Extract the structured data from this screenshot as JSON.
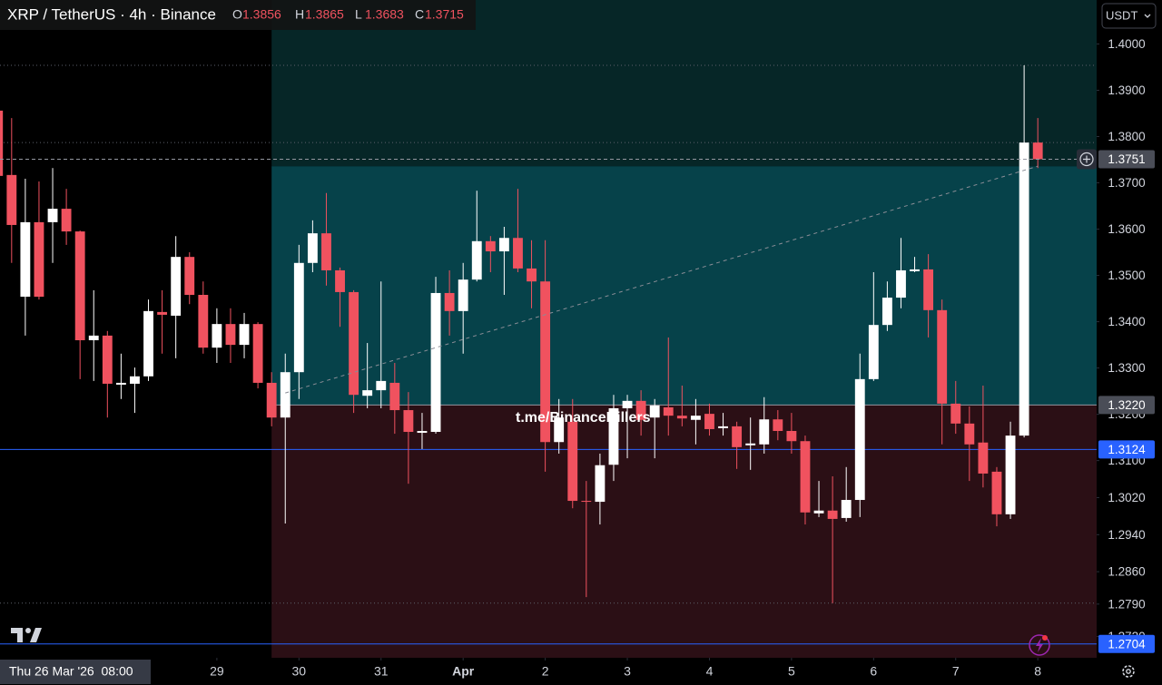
{
  "header": {
    "title": "XRP / TetherUS · 4h · Binance",
    "ohlc_labels": [
      "O",
      "H",
      "L",
      "C"
    ]
  },
  "currency": "USDT",
  "watermark": "t.me/BinanceKillers",
  "chart_data": {
    "type": "candlestick",
    "open": [
      1.3856,
      1.3717,
      1.3454,
      1.3615,
      1.3615,
      1.3644,
      1.3595,
      1.336,
      1.337,
      1.3264,
      1.3266,
      1.3282,
      1.3421,
      1.3413,
      1.354,
      1.3458,
      1.3344,
      1.3395,
      1.335,
      1.3395,
      1.3268,
      1.3193,
      1.3291,
      1.3527,
      1.3591,
      1.3511,
      1.3464,
      1.324,
      1.3252,
      1.3268,
      1.3209,
      1.316,
      1.3162,
      1.3462,
      1.3423,
      1.3491,
      1.3574,
      1.3552,
      1.3581,
      1.3515,
      1.3487,
      1.314,
      1.3184,
      1.3013,
      1.3011,
      1.3091,
      1.3213,
      1.3229,
      1.3193,
      1.3215,
      1.3197,
      1.3188,
      1.3201,
      1.317,
      1.3174,
      1.3133,
      1.3135,
      1.3189,
      1.3164,
      1.3142,
      1.2986,
      1.2992,
      1.2976,
      1.3015,
      1.3276,
      1.3393,
      1.3452,
      1.3509,
      1.3513,
      1.3425,
      1.3223,
      1.318,
      1.3139,
      1.3076,
      1.2984,
      1.3154,
      1.3787
    ],
    "high": [
      1.3865,
      1.384,
      1.3709,
      1.3703,
      1.3732,
      1.3687,
      1.3597,
      1.3468,
      1.338,
      1.3331,
      1.3301,
      1.3448,
      1.3468,
      1.3585,
      1.355,
      1.3487,
      1.3429,
      1.3429,
      1.3419,
      1.3399,
      1.3291,
      1.3331,
      1.3566,
      1.3619,
      1.3678,
      1.3517,
      1.3468,
      1.3354,
      1.3487,
      1.3311,
      1.3248,
      1.3203,
      1.3497,
      1.3511,
      1.3527,
      1.3683,
      1.3585,
      1.3605,
      1.3687,
      1.3576,
      1.3576,
      1.3233,
      1.3233,
      1.3056,
      1.3115,
      1.3242,
      1.3242,
      1.3252,
      1.3233,
      1.3366,
      1.3262,
      1.3233,
      1.3223,
      1.3203,
      1.3184,
      1.3193,
      1.3237,
      1.3209,
      1.3203,
      1.3154,
      1.3056,
      1.3066,
      1.3086,
      1.3331,
      1.3507,
      1.3487,
      1.3581,
      1.354,
      1.3546,
      1.3448,
      1.3272,
      1.3217,
      1.3262,
      1.3086,
      1.3184,
      1.3954,
      1.384
    ],
    "low": [
      1.3683,
      1.3527,
      1.337,
      1.3448,
      1.3527,
      1.3566,
      1.3276,
      1.3272,
      1.3193,
      1.3233,
      1.3203,
      1.3272,
      1.3331,
      1.3321,
      1.3438,
      1.3331,
      1.3311,
      1.3311,
      1.3321,
      1.3256,
      1.3174,
      1.2964,
      1.3233,
      1.3507,
      1.3478,
      1.3389,
      1.3203,
      1.3213,
      1.3213,
      1.3158,
      1.305,
      1.3125,
      1.3158,
      1.337,
      1.3331,
      1.3487,
      1.3507,
      1.3458,
      1.3507,
      1.3429,
      1.3076,
      1.3115,
      1.2997,
      1.2805,
      1.2962,
      1.3056,
      1.3105,
      1.3154,
      1.3105,
      1.3154,
      1.3174,
      1.3135,
      1.3154,
      1.3154,
      1.3082,
      1.308,
      1.3115,
      1.3144,
      1.3115,
      1.2962,
      1.2978,
      1.2792,
      1.2968,
      1.2978,
      1.3272,
      1.338,
      1.3429,
      1.3507,
      1.3366,
      1.3135,
      1.3158,
      1.3056,
      1.3042,
      1.2958,
      1.2974,
      1.315,
      1.3732
    ],
    "close": [
      1.3715,
      1.3609,
      1.3615,
      1.3454,
      1.3644,
      1.3595,
      1.336,
      1.337,
      1.3266,
      1.3268,
      1.3282,
      1.3423,
      1.3415,
      1.354,
      1.3458,
      1.3344,
      1.3395,
      1.335,
      1.3395,
      1.3268,
      1.3193,
      1.3291,
      1.3527,
      1.3591,
      1.3511,
      1.3464,
      1.3242,
      1.3252,
      1.3272,
      1.3209,
      1.3162,
      1.3164,
      1.3462,
      1.3423,
      1.3491,
      1.3574,
      1.3552,
      1.3581,
      1.3515,
      1.3487,
      1.314,
      1.3193,
      1.3013,
      1.3011,
      1.309,
      1.3213,
      1.3229,
      1.3188,
      1.3219,
      1.3197,
      1.3191,
      1.3197,
      1.3168,
      1.3174,
      1.3129,
      1.3137,
      1.3189,
      1.3164,
      1.3142,
      1.2988,
      1.2992,
      1.2974,
      1.3015,
      1.3276,
      1.3393,
      1.3452,
      1.3511,
      1.3513,
      1.3425,
      1.3223,
      1.318,
      1.3135,
      1.3072,
      1.2984,
      1.3154,
      1.3787,
      1.3751
    ],
    "up_color": "#ffffff",
    "down_color": "#f0525f",
    "xlim": [
      0.15,
      80.3
    ],
    "xticks": [
      {
        "value": 16,
        "label": "29"
      },
      {
        "value": 22,
        "label": "30"
      },
      {
        "value": 28,
        "label": "31"
      },
      {
        "value": 34,
        "label": "Apr"
      },
      {
        "value": 40,
        "label": "2"
      },
      {
        "value": 46,
        "label": "3"
      },
      {
        "value": 52,
        "label": "4"
      },
      {
        "value": 58,
        "label": "5"
      },
      {
        "value": 64,
        "label": "6"
      },
      {
        "value": 70,
        "label": "7"
      },
      {
        "value": 76,
        "label": "8"
      }
    ],
    "ylim": [
      1.2674,
      1.4095
    ],
    "yticks": [
      {
        "value": 1.4,
        "label": "1.4000"
      },
      {
        "value": 1.39,
        "label": "1.3900"
      },
      {
        "value": 1.38,
        "label": "1.3800"
      },
      {
        "value": 1.37,
        "label": "1.3700"
      },
      {
        "value": 1.36,
        "label": "1.3600"
      },
      {
        "value": 1.35,
        "label": "1.3500"
      },
      {
        "value": 1.34,
        "label": "1.3400"
      },
      {
        "value": 1.33,
        "label": "1.3300"
      },
      {
        "value": 1.32,
        "label": "1.3200"
      },
      {
        "value": 1.31,
        "label": "1.3100"
      },
      {
        "value": 1.302,
        "label": "1.3020"
      },
      {
        "value": 1.294,
        "label": "1.2940"
      },
      {
        "value": 1.286,
        "label": "1.2860"
      },
      {
        "value": 1.279,
        "label": "1.2790"
      },
      {
        "value": 1.272,
        "label": "1.2720"
      }
    ],
    "crosshair": {
      "index": 0,
      "label": "Thu 26 Mar '26  08:00"
    },
    "position": {
      "start": 20,
      "entry": {
        "value": 1.322,
        "label": "1.3220"
      },
      "target": 1.3736
    },
    "trend_line": {
      "x": [
        21,
        76
      ],
      "y": [
        1.3246,
        1.3736
      ]
    },
    "levels": [
      {
        "value": 1.3124,
        "color": "#2962ff",
        "style": "solid",
        "labeled": true
      },
      {
        "value": 1.2704,
        "color": "#2962ff",
        "style": "solid",
        "labeled": true
      },
      {
        "value": 1.3954,
        "color": "#5d606b",
        "style": "dotted",
        "labeled": false
      },
      {
        "value": 1.3787,
        "color": "#5d606b",
        "style": "dotted",
        "labeled": false
      },
      {
        "value": 1.2792,
        "color": "#5d606b",
        "style": "dotted",
        "labeled": false
      }
    ]
  }
}
